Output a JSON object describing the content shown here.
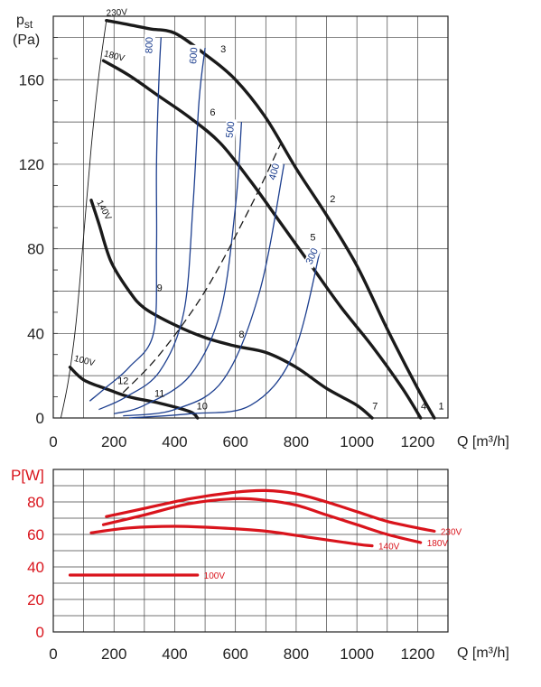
{
  "colors": {
    "pressure_curve": "#1a1a1a",
    "rpm_curve": "#1d3f8f",
    "system_curve": "#1a1a1a",
    "power_curve": "#d9141c",
    "power_axis": "#d9141c",
    "grid": "#444444"
  },
  "chart_data": [
    {
      "type": "line",
      "title": "",
      "ylabel": "pst\n(Pa)",
      "ylabel_main": "p",
      "ylabel_sub": "st",
      "ylabel_unit": "(Pa)",
      "xlabel": "Q [m³/h]",
      "xlim": [
        0,
        1300
      ],
      "ylim": [
        0,
        190
      ],
      "x_ticks": [
        0,
        200,
        400,
        600,
        800,
        1000,
        1200
      ],
      "y_ticks": [
        0,
        40,
        80,
        120,
        160
      ],
      "grid": true,
      "series": [
        {
          "name": "230V",
          "label_number": "1",
          "kind": "voltage",
          "points": [
            [
              175,
              188
            ],
            [
              250,
              186
            ],
            [
              320,
              184
            ],
            [
              400,
              182
            ],
            [
              500,
              172
            ],
            [
              600,
              160
            ],
            [
              700,
              142
            ],
            [
              800,
              118
            ],
            [
              900,
              96
            ],
            [
              1000,
              72
            ],
            [
              1100,
              42
            ],
            [
              1200,
              14
            ],
            [
              1255,
              0
            ]
          ]
        },
        {
          "name": "180V",
          "label_number": "4",
          "kind": "voltage",
          "points": [
            [
              165,
              169
            ],
            [
              250,
              162
            ],
            [
              350,
              152
            ],
            [
              450,
              142
            ],
            [
              550,
              130
            ],
            [
              650,
              112
            ],
            [
              750,
              92
            ],
            [
              850,
              72
            ],
            [
              950,
              52
            ],
            [
              1050,
              34
            ],
            [
              1150,
              14
            ],
            [
              1210,
              0
            ]
          ]
        },
        {
          "name": "140V",
          "label_number": "7",
          "kind": "voltage",
          "points": [
            [
              125,
              103
            ],
            [
              150,
              92
            ],
            [
              190,
              74
            ],
            [
              250,
              60
            ],
            [
              300,
              52
            ],
            [
              400,
              44
            ],
            [
              500,
              38
            ],
            [
              600,
              34
            ],
            [
              700,
              31
            ],
            [
              800,
              24
            ],
            [
              900,
              14
            ],
            [
              1000,
              6
            ],
            [
              1050,
              0
            ]
          ]
        },
        {
          "name": "100V",
          "label_number": "",
          "kind": "voltage",
          "points": [
            [
              55,
              24
            ],
            [
              100,
              18
            ],
            [
              170,
              14
            ],
            [
              250,
              10
            ],
            [
              350,
              7
            ],
            [
              450,
              3
            ],
            [
              475,
              0
            ]
          ]
        },
        {
          "name": "",
          "label_number": "",
          "kind": "boundary",
          "points": [
            [
              25,
              0
            ],
            [
              50,
              18
            ],
            [
              75,
              45
            ],
            [
              100,
              86
            ],
            [
              125,
              128
            ],
            [
              150,
              162
            ],
            [
              175,
              188
            ]
          ]
        },
        {
          "name": "800",
          "kind": "rpm",
          "points": [
            [
              120,
              8
            ],
            [
              170,
              14
            ],
            [
              250,
              24
            ],
            [
              330,
              40
            ],
            [
              340,
              80
            ],
            [
              340,
              120
            ],
            [
              348,
              160
            ],
            [
              355,
              180
            ]
          ]
        },
        {
          "name": "600",
          "kind": "rpm",
          "points": [
            [
              150,
              4
            ],
            [
              240,
              10
            ],
            [
              350,
              22
            ],
            [
              430,
              50
            ],
            [
              460,
              100
            ],
            [
              480,
              150
            ],
            [
              500,
              175
            ]
          ]
        },
        {
          "name": "500",
          "kind": "rpm",
          "points": [
            [
              200,
              2
            ],
            [
              300,
              6
            ],
            [
              450,
              20
            ],
            [
              550,
              50
            ],
            [
              600,
              100
            ],
            [
              620,
              140
            ]
          ]
        },
        {
          "name": "400",
          "kind": "rpm",
          "points": [
            [
              230,
              1
            ],
            [
              400,
              4
            ],
            [
              560,
              18
            ],
            [
              680,
              60
            ],
            [
              760,
              120
            ]
          ]
        },
        {
          "name": "300",
          "kind": "rpm",
          "points": [
            [
              250,
              0
            ],
            [
              450,
              2
            ],
            [
              650,
              6
            ],
            [
              790,
              30
            ],
            [
              880,
              80
            ]
          ]
        },
        {
          "name": "",
          "kind": "system",
          "dashed": true,
          "points": [
            [
              230,
              12
            ],
            [
              350,
              30
            ],
            [
              500,
              60
            ],
            [
              650,
              100
            ],
            [
              750,
              130
            ]
          ]
        }
      ],
      "curve_numbers": [
        {
          "label": "1",
          "x": 1278,
          "y": 4
        },
        {
          "label": "2",
          "x": 920,
          "y": 102
        },
        {
          "label": "3",
          "x": 560,
          "y": 173
        },
        {
          "label": "4",
          "x": 1220,
          "y": 4
        },
        {
          "label": "5",
          "x": 855,
          "y": 84
        },
        {
          "label": "6",
          "x": 525,
          "y": 143
        },
        {
          "label": "7",
          "x": 1060,
          "y": 4
        },
        {
          "label": "8",
          "x": 620,
          "y": 38
        },
        {
          "label": "9",
          "x": 350,
          "y": 60
        },
        {
          "label": "10",
          "x": 490,
          "y": 4
        },
        {
          "label": "11",
          "x": 350,
          "y": 10
        },
        {
          "label": "12",
          "x": 230,
          "y": 16
        }
      ]
    },
    {
      "type": "line",
      "title": "",
      "ylabel": "P[W]",
      "xlabel": "Q [m³/h]",
      "xlim": [
        0,
        1300
      ],
      "ylim": [
        0,
        100
      ],
      "x_ticks": [
        0,
        200,
        400,
        600,
        800,
        1000,
        1200
      ],
      "y_ticks": [
        0,
        20,
        40,
        60,
        80
      ],
      "grid": true,
      "series": [
        {
          "name": "230V",
          "points": [
            [
              175,
              71
            ],
            [
              300,
              76
            ],
            [
              450,
              82
            ],
            [
              600,
              86
            ],
            [
              700,
              87
            ],
            [
              800,
              85
            ],
            [
              900,
              80
            ],
            [
              1000,
              74
            ],
            [
              1100,
              68
            ],
            [
              1200,
              64
            ],
            [
              1255,
              62
            ]
          ]
        },
        {
          "name": "180V",
          "points": [
            [
              165,
              66
            ],
            [
              300,
              72
            ],
            [
              450,
              79
            ],
            [
              600,
              82
            ],
            [
              700,
              81
            ],
            [
              800,
              78
            ],
            [
              900,
              72
            ],
            [
              1000,
              66
            ],
            [
              1100,
              60
            ],
            [
              1210,
              55
            ]
          ]
        },
        {
          "name": "140V",
          "points": [
            [
              125,
              61
            ],
            [
              250,
              64
            ],
            [
              400,
              65
            ],
            [
              550,
              64
            ],
            [
              700,
              62
            ],
            [
              850,
              58
            ],
            [
              1000,
              54
            ],
            [
              1050,
              53
            ]
          ]
        },
        {
          "name": "100V",
          "points": [
            [
              55,
              35
            ],
            [
              150,
              35
            ],
            [
              250,
              35
            ],
            [
              350,
              35
            ],
            [
              475,
              35
            ]
          ]
        }
      ]
    }
  ]
}
